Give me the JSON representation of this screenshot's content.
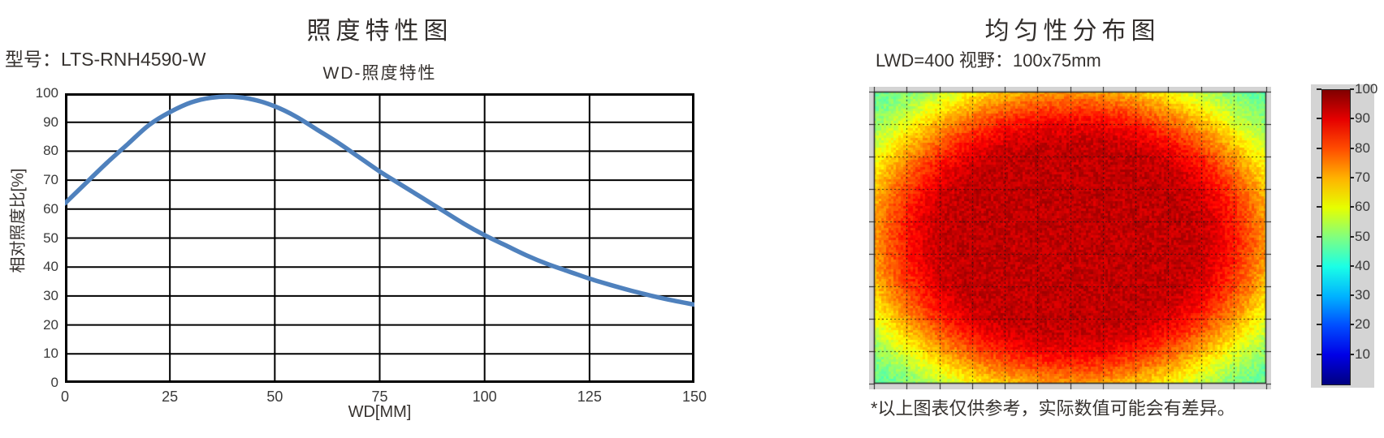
{
  "page": {
    "background": "#ffffff"
  },
  "left_chart": {
    "title": "照度特性图",
    "model_label": "型号：LTS-RNH4590-W",
    "subtitle": "WD-照度特性",
    "xlabel": "WD[MM]",
    "ylabel": "相对照度比[%]",
    "line_color": "#4f81bd",
    "grid_color": "#000000"
  },
  "right_chart": {
    "title": "均匀性分布图",
    "subtitle": "LWD=400  视野：100x75mm",
    "panel_color": "#d4d4d4",
    "colormap": "jet",
    "colorbar_ticks": [
      100,
      90,
      80,
      70,
      60,
      50,
      40,
      30,
      20,
      10
    ]
  },
  "footnote": "*以上图表仅供参考，实际数值可能会有差异。",
  "chart_data": [
    {
      "type": "line",
      "title": "WD-照度特性",
      "xlabel": "WD[MM]",
      "ylabel": "相对照度比[%]",
      "x": [
        0,
        5,
        10,
        15,
        20,
        25,
        30,
        35,
        40,
        45,
        50,
        55,
        60,
        65,
        70,
        75,
        80,
        85,
        90,
        95,
        100,
        105,
        110,
        115,
        120,
        125,
        130,
        135,
        140,
        145,
        150
      ],
      "y": [
        62,
        69,
        76,
        82.5,
        89,
        93.5,
        96.8,
        98.5,
        98.8,
        97.8,
        95.5,
        92,
        87.5,
        83,
        78,
        73,
        68.5,
        64,
        59.5,
        55,
        51,
        47.5,
        44,
        41,
        38.5,
        36,
        33.8,
        31.8,
        30,
        28.4,
        27
      ],
      "xlim": [
        0,
        150
      ],
      "ylim": [
        0,
        100
      ],
      "xticks": [
        0,
        25,
        50,
        75,
        100,
        125,
        150
      ],
      "yticks": [
        0,
        10,
        20,
        30,
        40,
        50,
        60,
        70,
        80,
        90,
        100
      ],
      "line_color": "#4f81bd",
      "grid": true,
      "legend_position": "none"
    },
    {
      "type": "heatmap",
      "title": "均匀性分布图",
      "condition": "LWD=400",
      "field_of_view": "100x75mm",
      "value_range": [
        0,
        100
      ],
      "colormap": "jet",
      "colorbar_ticks": [
        100,
        90,
        80,
        70,
        60,
        50,
        40,
        30,
        20,
        10
      ],
      "center_value": 93,
      "mid_edge_value": 73,
      "corner_value": 48,
      "grid": "dashed",
      "grid_divisions_x": 12,
      "grid_divisions_y": 9
    }
  ]
}
